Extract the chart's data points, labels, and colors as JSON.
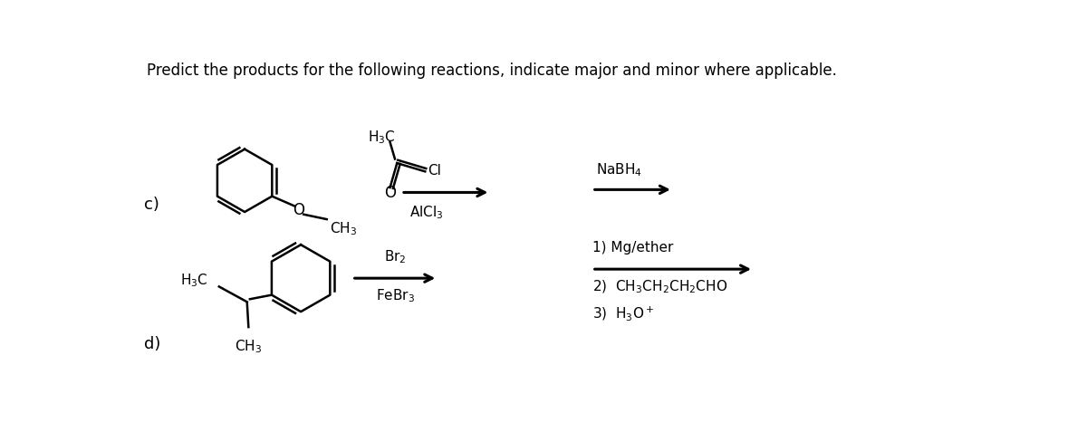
{
  "title": "Predict the products for the following reactions, indicate major and minor where applicable.",
  "background_color": "#ffffff",
  "text_color": "#000000",
  "label_c": "c)",
  "label_d": "d)",
  "nabh4_label": "NaBH$_4$",
  "alcl3_label": "AlCl$_3$",
  "h3c_top": "H$_3$C",
  "cl_label": "Cl",
  "ch3_label_c": "CH$_3$",
  "o_label": "O",
  "br2_label": "Br$_2$",
  "febr3_label": "FeBr$_3$",
  "h3c_label_d": "H$_3$C",
  "ch3_bottom": "CH$_3$",
  "step1": "1) Mg/ether",
  "step2": "2)  CH$_3$CH$_2$CH$_2$CHO",
  "step3": "3)  H$_3$O$^+$"
}
